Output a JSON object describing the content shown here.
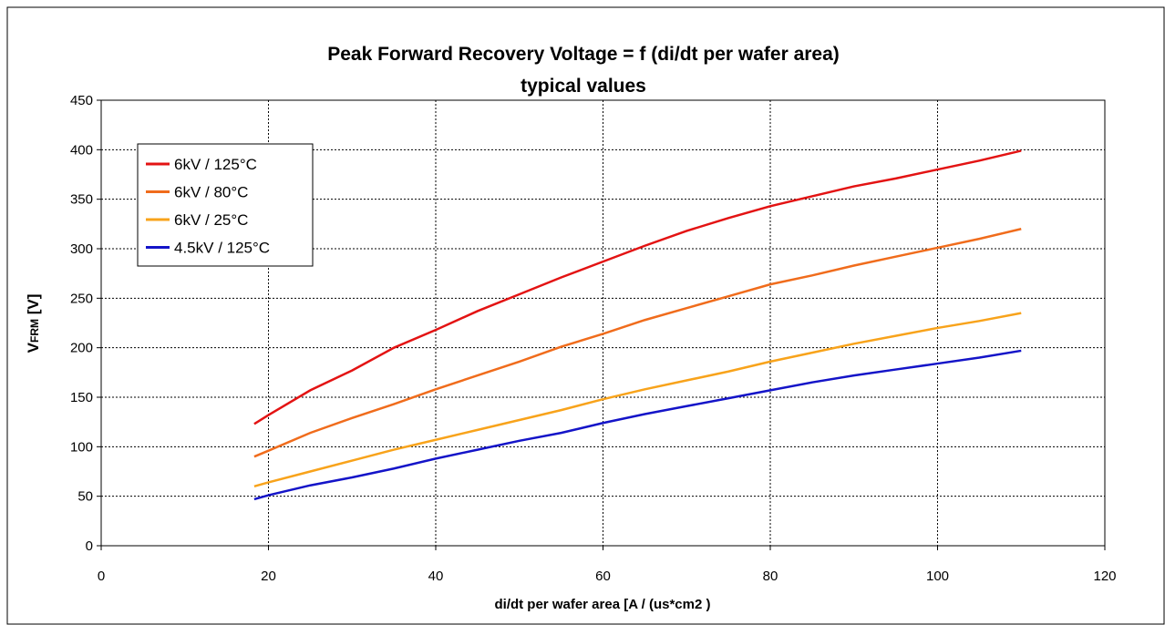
{
  "chart_data": {
    "type": "line",
    "title": [
      "Peak Forward Recovery Voltage = f (di/dt per wafer area)",
      "typical values"
    ],
    "y_label": {
      "main": "V",
      "sub": "FRM",
      "rest": " [V]"
    },
    "x_label": "di/dt per wafer area [A / (us*cm2 )",
    "x": [
      18.3,
      20,
      25,
      30,
      35,
      40,
      45,
      50,
      55,
      60,
      65,
      70,
      75,
      80,
      85,
      90,
      95,
      100,
      105,
      110
    ],
    "series": [
      {
        "name": "6kV / 125°C",
        "color": "#e31313",
        "values": [
          123,
          132,
          157,
          177,
          200,
          218,
          237,
          254,
          271,
          287,
          303,
          318,
          331,
          343,
          353,
          363,
          371,
          380,
          389,
          399
        ]
      },
      {
        "name": "6kV / 80°C",
        "color": "#f06c1c",
        "values": [
          90,
          96,
          114,
          129,
          143,
          158,
          172,
          186,
          201,
          214,
          228,
          240,
          252,
          264,
          273,
          283,
          292,
          301,
          310,
          320
        ]
      },
      {
        "name": "6kV / 25°C",
        "color": "#f8a31b",
        "values": [
          60,
          64,
          75,
          86,
          97,
          107,
          117,
          127,
          137,
          148,
          158,
          167,
          176,
          186,
          195,
          204,
          212,
          220,
          227,
          235
        ]
      },
      {
        "name": "4.5kV / 125°C",
        "color": "#1414c8",
        "values": [
          47,
          51,
          61,
          69,
          78,
          88,
          97,
          106,
          114,
          124,
          133,
          141,
          149,
          157,
          165,
          172,
          178,
          184,
          190,
          197
        ]
      }
    ],
    "xlim": [
      0,
      120
    ],
    "xticks": [
      0,
      20,
      40,
      60,
      80,
      100,
      120
    ],
    "ylim": [
      0,
      450
    ],
    "yticks": [
      0,
      50,
      100,
      150,
      200,
      250,
      300,
      350,
      400,
      450
    ],
    "grid": true,
    "legend": "upper-left"
  }
}
